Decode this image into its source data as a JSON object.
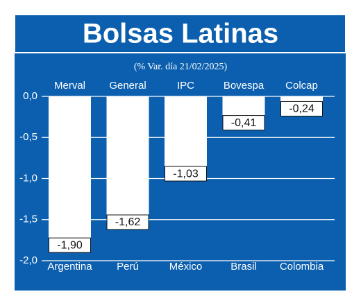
{
  "chart_data": {
    "type": "bar",
    "title": "Bolsas Latinas",
    "subtitle": "(% Var. día 21/02/2025)",
    "categories": [
      "Argentina",
      "Perú",
      "México",
      "Brasil",
      "Colombia"
    ],
    "indices": [
      "Merval",
      "General",
      "IPC",
      "Bovespa",
      "Colcap"
    ],
    "values": [
      -1.9,
      -1.62,
      -1.03,
      -0.41,
      -0.24
    ],
    "value_labels": [
      "-1,90",
      "-1,62",
      "-1,03",
      "-0,41",
      "-0,24"
    ],
    "color": "#ffffff",
    "ylim": [
      -2.0,
      0.0
    ],
    "yticks": [
      {
        "value": 0.0,
        "label": "0,0"
      },
      {
        "value": -0.5,
        "label": "-0,5"
      },
      {
        "value": -1.0,
        "label": "-1,0"
      },
      {
        "value": -1.5,
        "label": "-1,5"
      },
      {
        "value": -2.0,
        "label": "-2,0"
      }
    ],
    "grid": true
  }
}
